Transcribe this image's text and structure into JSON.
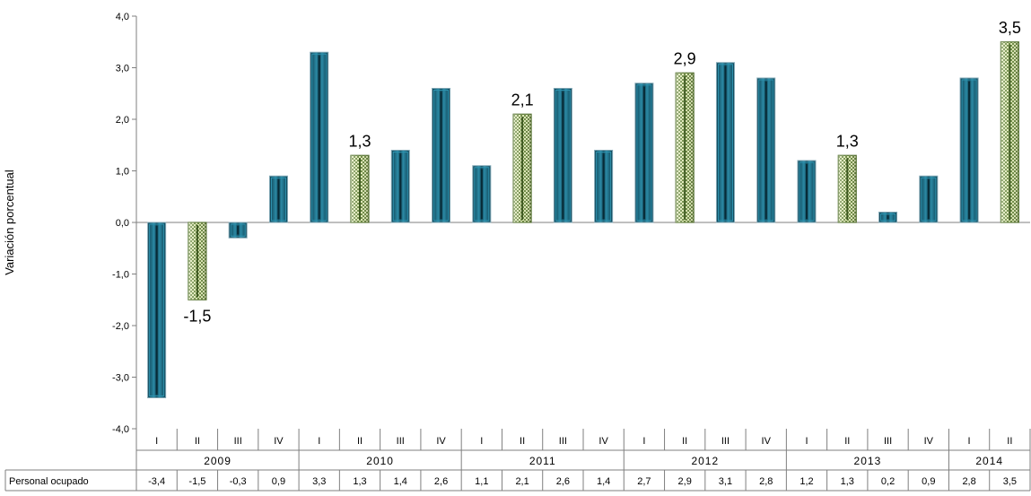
{
  "chart_data": {
    "type": "bar",
    "ylabel": "Variación porcentual",
    "ylim": [
      -4.0,
      4.0
    ],
    "y_ticks": [
      "-4,0",
      "-3,0",
      "-2,0",
      "-1,0",
      "0,0",
      "1,0",
      "2,0",
      "3,0",
      "4,0"
    ],
    "y_tick_values": [
      -4,
      -3,
      -2,
      -1,
      0,
      1,
      2,
      3,
      4
    ],
    "categories": [
      "I",
      "II",
      "III",
      "IV",
      "I",
      "II",
      "III",
      "IV",
      "I",
      "II",
      "III",
      "IV",
      "I",
      "II",
      "III",
      "IV",
      "I",
      "II",
      "III",
      "IV",
      "I",
      "II"
    ],
    "years": [
      {
        "label": "2009",
        "count": 4
      },
      {
        "label": "2010",
        "count": 4
      },
      {
        "label": "2011",
        "count": 4
      },
      {
        "label": "2012",
        "count": 4
      },
      {
        "label": "2013",
        "count": 4
      },
      {
        "label": "2014",
        "count": 2
      }
    ],
    "series": [
      {
        "name": "Personal ocupado",
        "values": [
          -3.4,
          -1.5,
          -0.3,
          0.9,
          3.3,
          1.3,
          1.4,
          2.6,
          1.1,
          2.1,
          2.6,
          1.4,
          2.7,
          2.9,
          3.1,
          2.8,
          1.2,
          1.3,
          0.2,
          0.9,
          2.8,
          3.5
        ],
        "table_values": [
          "-3,4",
          "-1,5",
          "-0,3",
          "0,9",
          "3,3",
          "1,3",
          "1,4",
          "2,6",
          "1,1",
          "2,1",
          "2,6",
          "1,4",
          "2,7",
          "2,9",
          "3,1",
          "2,8",
          "1,2",
          "1,3",
          "0,2",
          "0,9",
          "2,8",
          "3,5"
        ]
      }
    ],
    "highlighted_index": [
      1,
      5,
      9,
      13,
      17,
      21
    ],
    "data_labels": [
      "-1,5",
      "1,3",
      "2,1",
      "2,9",
      "1,3",
      "3,5"
    ],
    "colors": {
      "bar_main": "#1f6e86",
      "bar_main_dark": "#0c3d4e",
      "bar_highlight": "#c5d39a",
      "bar_highlight_dark": "#5e7a3a",
      "axis": "#7f7f7f"
    },
    "grid": false,
    "legend": "none"
  }
}
